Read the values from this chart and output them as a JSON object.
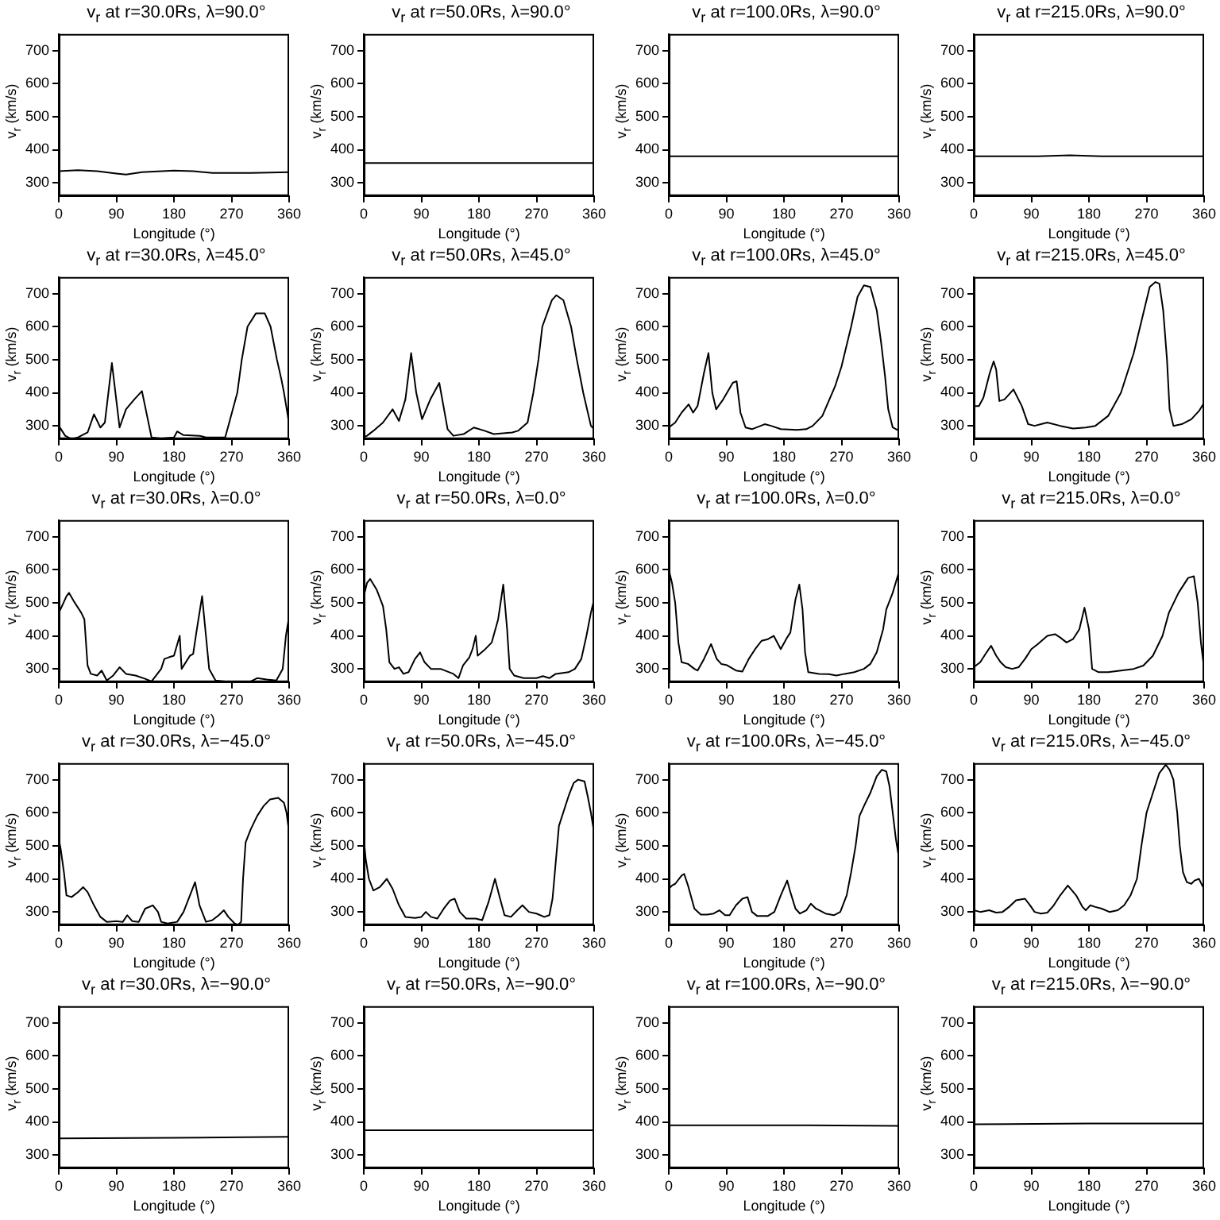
{
  "chart_data": [
    {
      "type": "line",
      "title": "v$_{r}$ at r=30.0Rs, λ=90.0°",
      "xlabel": "Longitude (°)",
      "ylabel": "v$_{r}$ (km/s)",
      "color": "#000000",
      "xlim": [
        0,
        360
      ],
      "xticks": [
        0,
        90,
        180,
        270,
        360
      ],
      "ylim": [
        260,
        750
      ],
      "yticks": [
        300,
        400,
        500,
        600,
        700
      ],
      "grid": false,
      "x": [
        0,
        30,
        60,
        90,
        105,
        130,
        180,
        210,
        240,
        300,
        360
      ],
      "values": [
        335,
        338,
        335,
        328,
        325,
        332,
        337,
        335,
        330,
        330,
        332
      ]
    },
    {
      "type": "line",
      "title": "v$_{r}$ at r=50.0Rs, λ=90.0°",
      "xlabel": "Longitude (°)",
      "ylabel": "v$_{r}$ (km/s)",
      "color": "#000000",
      "xlim": [
        0,
        360
      ],
      "xticks": [
        0,
        90,
        180,
        270,
        360
      ],
      "ylim": [
        260,
        750
      ],
      "yticks": [
        300,
        400,
        500,
        600,
        700
      ],
      "grid": false,
      "x": [
        0,
        180,
        360
      ],
      "values": [
        360,
        360,
        360
      ]
    },
    {
      "type": "line",
      "title": "v$_{r}$ at r=100.0Rs, λ=90.0°",
      "xlabel": "Longitude (°)",
      "ylabel": "v$_{r}$ (km/s)",
      "color": "#000000",
      "xlim": [
        0,
        360
      ],
      "xticks": [
        0,
        90,
        180,
        270,
        360
      ],
      "ylim": [
        260,
        750
      ],
      "yticks": [
        300,
        400,
        500,
        600,
        700
      ],
      "grid": false,
      "x": [
        0,
        180,
        360
      ],
      "values": [
        380,
        380,
        380
      ]
    },
    {
      "type": "line",
      "title": "v$_{r}$ at r=215.0Rs, λ=90.0°",
      "xlabel": "Longitude (°)",
      "ylabel": "v$_{r}$ (km/s)",
      "color": "#000000",
      "xlim": [
        0,
        360
      ],
      "xticks": [
        0,
        90,
        180,
        270,
        360
      ],
      "ylim": [
        260,
        750
      ],
      "yticks": [
        300,
        400,
        500,
        600,
        700
      ],
      "grid": false,
      "x": [
        0,
        100,
        150,
        200,
        360
      ],
      "values": [
        380,
        380,
        383,
        380,
        380
      ]
    },
    {
      "type": "line",
      "title": "v$_{r}$ at r=30.0Rs, λ=45.0°",
      "xlabel": "Longitude (°)",
      "ylabel": "v$_{r}$ (km/s)",
      "color": "#000000",
      "xlim": [
        0,
        360
      ],
      "xticks": [
        0,
        90,
        180,
        270,
        360
      ],
      "ylim": [
        260,
        750
      ],
      "yticks": [
        300,
        400,
        500,
        600,
        700
      ],
      "grid": false,
      "x": [
        0,
        10,
        20,
        30,
        45,
        55,
        65,
        72,
        83,
        95,
        105,
        118,
        130,
        138,
        145,
        160,
        180,
        185,
        195,
        220,
        230,
        260,
        265,
        279,
        286,
        295,
        308,
        322,
        331,
        341,
        348,
        352,
        358,
        360
      ],
      "values": [
        300,
        270,
        260,
        265,
        280,
        335,
        295,
        310,
        490,
        295,
        350,
        380,
        405,
        330,
        265,
        262,
        265,
        283,
        272,
        270,
        265,
        265,
        300,
        400,
        500,
        600,
        640,
        640,
        600,
        500,
        440,
        400,
        330,
        300
      ]
    },
    {
      "type": "line",
      "title": "v$_{r}$ at r=50.0Rs, λ=45.0°",
      "xlabel": "Longitude (°)",
      "ylabel": "v$_{r}$ (km/s)",
      "color": "#000000",
      "xlim": [
        0,
        360
      ],
      "xticks": [
        0,
        90,
        180,
        270,
        360
      ],
      "ylim": [
        260,
        750
      ],
      "yticks": [
        300,
        400,
        500,
        600,
        700
      ],
      "grid": false,
      "x": [
        0,
        5,
        15,
        30,
        45,
        55,
        65,
        74,
        82,
        91,
        104,
        118,
        131,
        140,
        156,
        172,
        189,
        203,
        232,
        241,
        256,
        265,
        273,
        279,
        294,
        301,
        312,
        324,
        333,
        343,
        355,
        360
      ],
      "values": [
        265,
        270,
        285,
        310,
        350,
        315,
        380,
        520,
        400,
        320,
        380,
        430,
        290,
        270,
        275,
        295,
        285,
        275,
        280,
        285,
        310,
        400,
        500,
        600,
        680,
        695,
        680,
        600,
        500,
        400,
        300,
        290
      ]
    },
    {
      "type": "line",
      "title": "v$_{r}$ at r=100.0Rs, λ=45.0°",
      "xlabel": "Longitude (°)",
      "ylabel": "v$_{r}$ (km/s)",
      "color": "#000000",
      "xlim": [
        0,
        360
      ],
      "xticks": [
        0,
        90,
        180,
        270,
        360
      ],
      "ylim": [
        260,
        750
      ],
      "yticks": [
        300,
        400,
        500,
        600,
        700
      ],
      "grid": false,
      "x": [
        0,
        10,
        20,
        31,
        38,
        45,
        55,
        62,
        68,
        74,
        85,
        100,
        106,
        112,
        120,
        130,
        150,
        160,
        175,
        200,
        215,
        225,
        240,
        260,
        270,
        285,
        295,
        305,
        315,
        325,
        332,
        338,
        343,
        350,
        360
      ],
      "values": [
        295,
        310,
        340,
        365,
        340,
        360,
        460,
        520,
        400,
        350,
        380,
        430,
        435,
        340,
        295,
        290,
        305,
        300,
        290,
        288,
        290,
        300,
        330,
        420,
        480,
        600,
        690,
        725,
        720,
        650,
        550,
        450,
        350,
        295,
        285
      ]
    },
    {
      "type": "line",
      "title": "v$_{r}$ at r=215.0Rs, λ=45.0°",
      "xlabel": "Longitude (°)",
      "ylabel": "v$_{r}$ (km/s)",
      "color": "#000000",
      "xlim": [
        0,
        360
      ],
      "xticks": [
        0,
        90,
        180,
        270,
        360
      ],
      "ylim": [
        260,
        750
      ],
      "yticks": [
        300,
        400,
        500,
        600,
        700
      ],
      "grid": false,
      "x": [
        0,
        8,
        15,
        25,
        31,
        35,
        40,
        48,
        55,
        62,
        75,
        85,
        95,
        105,
        115,
        135,
        155,
        175,
        190,
        210,
        230,
        250,
        265,
        275,
        284,
        290,
        296,
        302,
        306,
        312,
        325,
        340,
        352,
        360
      ],
      "values": [
        360,
        360,
        385,
        460,
        495,
        470,
        375,
        380,
        395,
        410,
        360,
        305,
        300,
        305,
        310,
        300,
        292,
        295,
        300,
        330,
        400,
        520,
        640,
        720,
        735,
        730,
        650,
        500,
        350,
        300,
        305,
        320,
        345,
        370
      ]
    },
    {
      "type": "line",
      "title": "v$_{r}$ at r=30.0Rs, λ=0.0°",
      "xlabel": "Longitude (°)",
      "ylabel": "v$_{r}$ (km/s)",
      "color": "#000000",
      "xlim": [
        0,
        360
      ],
      "xticks": [
        0,
        90,
        180,
        270,
        360
      ],
      "ylim": [
        260,
        750
      ],
      "yticks": [
        300,
        400,
        500,
        600,
        700
      ],
      "grid": false,
      "x": [
        0,
        5,
        12,
        16,
        25,
        35,
        40,
        45,
        50,
        60,
        67,
        75,
        85,
        95,
        105,
        120,
        135,
        145,
        150,
        160,
        165,
        172,
        180,
        189,
        192,
        205,
        210,
        215,
        224,
        230,
        235,
        245,
        260,
        280,
        300,
        310,
        325,
        340,
        350,
        355,
        360
      ],
      "values": [
        470,
        490,
        520,
        530,
        500,
        470,
        450,
        310,
        285,
        280,
        295,
        265,
        280,
        305,
        285,
        280,
        270,
        262,
        275,
        300,
        330,
        335,
        340,
        400,
        300,
        340,
        345,
        410,
        520,
        400,
        300,
        265,
        262,
        260,
        262,
        272,
        268,
        265,
        300,
        400,
        460
      ]
    },
    {
      "type": "line",
      "title": "v$_{r}$ at r=50.0Rs, λ=0.0°",
      "xlabel": "Longitude (°)",
      "ylabel": "v$_{r}$ (km/s)",
      "color": "#000000",
      "xlim": [
        0,
        360
      ],
      "xticks": [
        0,
        90,
        180,
        270,
        360
      ],
      "ylim": [
        260,
        750
      ],
      "yticks": [
        300,
        400,
        500,
        600,
        700
      ],
      "grid": false,
      "x": [
        0,
        5,
        10,
        20,
        30,
        35,
        40,
        48,
        55,
        62,
        70,
        80,
        88,
        95,
        105,
        120,
        140,
        148,
        155,
        165,
        170,
        175,
        178,
        190,
        200,
        210,
        218,
        224,
        228,
        235,
        250,
        270,
        280,
        290,
        300,
        320,
        330,
        340,
        348,
        355,
        360
      ],
      "values": [
        520,
        560,
        572,
        540,
        490,
        420,
        320,
        300,
        305,
        285,
        290,
        330,
        350,
        320,
        300,
        300,
        285,
        272,
        310,
        335,
        360,
        400,
        340,
        360,
        380,
        450,
        555,
        420,
        300,
        280,
        272,
        272,
        278,
        272,
        285,
        290,
        300,
        330,
        400,
        470,
        510
      ]
    },
    {
      "type": "line",
      "title": "v$_{r}$ at r=100.0Rs, λ=0.0°",
      "xlabel": "Longitude (°)",
      "ylabel": "v$_{r}$ (km/s)",
      "color": "#000000",
      "xlim": [
        0,
        360
      ],
      "xticks": [
        0,
        90,
        180,
        270,
        360
      ],
      "ylim": [
        260,
        750
      ],
      "yticks": [
        300,
        400,
        500,
        600,
        700
      ],
      "grid": false,
      "x": [
        0,
        5,
        10,
        15,
        20,
        30,
        40,
        45,
        55,
        66,
        75,
        82,
        90,
        105,
        115,
        125,
        135,
        145,
        155,
        164,
        175,
        185,
        190,
        198,
        204,
        209,
        213,
        218,
        235,
        250,
        262,
        275,
        290,
        305,
        315,
        325,
        335,
        340,
        350,
        360
      ],
      "values": [
        600,
        560,
        500,
        380,
        320,
        315,
        300,
        295,
        330,
        375,
        330,
        315,
        312,
        295,
        292,
        330,
        360,
        385,
        390,
        400,
        360,
        395,
        410,
        510,
        555,
        480,
        350,
        290,
        285,
        284,
        280,
        285,
        290,
        300,
        315,
        350,
        420,
        480,
        530,
        595
      ]
    },
    {
      "type": "line",
      "title": "v$_{r}$ at r=215.0Rs, λ=0.0°",
      "xlabel": "Longitude (°)",
      "ylabel": "v$_{r}$ (km/s)",
      "color": "#000000",
      "xlim": [
        0,
        360
      ],
      "xticks": [
        0,
        90,
        180,
        270,
        360
      ],
      "ylim": [
        260,
        750
      ],
      "yticks": [
        300,
        400,
        500,
        600,
        700
      ],
      "grid": false,
      "x": [
        0,
        10,
        20,
        27,
        35,
        42,
        50,
        60,
        70,
        80,
        90,
        100,
        115,
        127,
        135,
        145,
        155,
        165,
        173,
        180,
        185,
        195,
        210,
        230,
        250,
        265,
        280,
        295,
        305,
        320,
        335,
        344,
        350,
        355,
        360
      ],
      "values": [
        305,
        320,
        350,
        370,
        340,
        320,
        305,
        300,
        305,
        330,
        360,
        375,
        400,
        405,
        395,
        380,
        390,
        420,
        485,
        420,
        300,
        290,
        290,
        295,
        300,
        310,
        340,
        400,
        470,
        530,
        575,
        580,
        500,
        380,
        300
      ]
    },
    {
      "type": "line",
      "title": "v$_{r}$ at r=30.0Rs, λ=−45.0°",
      "xlabel": "Longitude (°)",
      "ylabel": "v$_{r}$ (km/s)",
      "color": "#000000",
      "xlim": [
        0,
        360
      ],
      "xticks": [
        0,
        90,
        180,
        270,
        360
      ],
      "ylim": [
        260,
        750
      ],
      "yticks": [
        300,
        400,
        500,
        600,
        700
      ],
      "grid": false,
      "x": [
        0,
        3,
        8,
        12,
        20,
        30,
        38,
        45,
        55,
        65,
        75,
        90,
        100,
        107,
        115,
        125,
        135,
        147,
        155,
        160,
        170,
        185,
        195,
        205,
        213,
        220,
        230,
        240,
        250,
        258,
        265,
        275,
        280,
        285,
        288,
        292,
        300,
        310,
        320,
        330,
        343,
        352,
        356,
        360
      ],
      "values": [
        520,
        490,
        420,
        350,
        345,
        360,
        375,
        360,
        320,
        285,
        270,
        272,
        270,
        290,
        272,
        270,
        310,
        320,
        300,
        270,
        265,
        270,
        300,
        350,
        390,
        320,
        270,
        275,
        290,
        305,
        285,
        265,
        260,
        270,
        400,
        510,
        550,
        590,
        620,
        640,
        645,
        630,
        600,
        540
      ]
    },
    {
      "type": "line",
      "title": "v$_{r}$ at r=50.0Rs, λ=−45.0°",
      "xlabel": "Longitude (°)",
      "ylabel": "v$_{r}$ (km/s)",
      "color": "#000000",
      "xlim": [
        0,
        360
      ],
      "xticks": [
        0,
        90,
        180,
        270,
        360
      ],
      "ylim": [
        260,
        750
      ],
      "yticks": [
        300,
        400,
        500,
        600,
        700
      ],
      "grid": false,
      "x": [
        0,
        3,
        8,
        15,
        25,
        36,
        45,
        55,
        65,
        80,
        90,
        97,
        105,
        115,
        125,
        135,
        142,
        150,
        160,
        175,
        185,
        195,
        205,
        213,
        220,
        230,
        240,
        248,
        258,
        270,
        282,
        290,
        295,
        300,
        305,
        320,
        328,
        335,
        345,
        350,
        355,
        360
      ],
      "values": [
        520,
        460,
        400,
        365,
        375,
        400,
        370,
        320,
        285,
        282,
        285,
        300,
        285,
        280,
        310,
        335,
        340,
        300,
        280,
        280,
        275,
        330,
        400,
        340,
        290,
        285,
        305,
        320,
        300,
        295,
        285,
        290,
        340,
        450,
        560,
        650,
        690,
        700,
        695,
        650,
        600,
        540
      ]
    },
    {
      "type": "line",
      "title": "v$_{r}$ at r=100.0Rs, λ=−45.0°",
      "xlabel": "Longitude (°)",
      "ylabel": "v$_{r}$ (km/s)",
      "color": "#000000",
      "xlim": [
        0,
        360
      ],
      "xticks": [
        0,
        90,
        180,
        270,
        360
      ],
      "ylim": [
        260,
        750
      ],
      "yticks": [
        300,
        400,
        500,
        600,
        700
      ],
      "grid": false,
      "x": [
        0,
        5,
        10,
        20,
        24,
        30,
        40,
        50,
        60,
        70,
        79,
        88,
        95,
        105,
        115,
        123,
        130,
        138,
        155,
        165,
        175,
        185,
        190,
        198,
        205,
        215,
        222,
        230,
        245,
        258,
        268,
        278,
        285,
        292,
        298,
        305,
        315,
        325,
        333,
        340,
        345,
        350,
        355,
        360
      ],
      "values": [
        370,
        380,
        385,
        410,
        415,
        380,
        310,
        292,
        292,
        295,
        305,
        290,
        290,
        320,
        340,
        345,
        300,
        288,
        288,
        300,
        350,
        395,
        360,
        310,
        295,
        305,
        325,
        310,
        295,
        290,
        300,
        350,
        420,
        500,
        590,
        620,
        660,
        710,
        730,
        725,
        680,
        600,
        520,
        460
      ]
    },
    {
      "type": "line",
      "title": "v$_{r}$ at r=215.0Rs, λ=−45.0°",
      "xlabel": "Longitude (°)",
      "ylabel": "v$_{r}$ (km/s)",
      "color": "#000000",
      "xlim": [
        0,
        360
      ],
      "xticks": [
        0,
        90,
        180,
        270,
        360
      ],
      "ylim": [
        260,
        750
      ],
      "yticks": [
        300,
        400,
        500,
        600,
        700
      ],
      "grid": false,
      "x": [
        0,
        10,
        24,
        35,
        45,
        55,
        66,
        80,
        88,
        95,
        105,
        115,
        125,
        135,
        147,
        160,
        170,
        175,
        182,
        190,
        200,
        212,
        225,
        235,
        245,
        255,
        262,
        270,
        280,
        290,
        300,
        306,
        312,
        318,
        322,
        327,
        333,
        340,
        345,
        352,
        357,
        360
      ],
      "values": [
        305,
        300,
        305,
        298,
        300,
        315,
        335,
        340,
        320,
        300,
        295,
        298,
        320,
        350,
        380,
        350,
        315,
        305,
        320,
        315,
        310,
        300,
        305,
        320,
        350,
        400,
        500,
        600,
        660,
        720,
        745,
        730,
        700,
        600,
        500,
        420,
        390,
        385,
        395,
        400,
        380,
        370
      ]
    },
    {
      "type": "line",
      "title": "v$_{r}$ at r=30.0Rs, λ=−90.0°",
      "xlabel": "Longitude (°)",
      "ylabel": "v$_{r}$ (km/s)",
      "color": "#000000",
      "xlim": [
        0,
        360
      ],
      "xticks": [
        0,
        90,
        180,
        270,
        360
      ],
      "ylim": [
        260,
        750
      ],
      "yticks": [
        300,
        400,
        500,
        600,
        700
      ],
      "grid": false,
      "x": [
        0,
        180,
        360
      ],
      "values": [
        350,
        352,
        355
      ]
    },
    {
      "type": "line",
      "title": "v$_{r}$ at r=50.0Rs, λ=−90.0°",
      "xlabel": "Longitude (°)",
      "ylabel": "v$_{r}$ (km/s)",
      "color": "#000000",
      "xlim": [
        0,
        360
      ],
      "xticks": [
        0,
        90,
        180,
        270,
        360
      ],
      "ylim": [
        260,
        750
      ],
      "yticks": [
        300,
        400,
        500,
        600,
        700
      ],
      "grid": false,
      "x": [
        0,
        180,
        360
      ],
      "values": [
        375,
        375,
        375
      ]
    },
    {
      "type": "line",
      "title": "v$_{r}$ at r=100.0Rs, λ=−90.0°",
      "xlabel": "Longitude (°)",
      "ylabel": "v$_{r}$ (km/s)",
      "color": "#000000",
      "xlim": [
        0,
        360
      ],
      "xticks": [
        0,
        90,
        180,
        270,
        360
      ],
      "ylim": [
        260,
        750
      ],
      "yticks": [
        300,
        400,
        500,
        600,
        700
      ],
      "grid": false,
      "x": [
        0,
        180,
        360
      ],
      "values": [
        390,
        390,
        388
      ]
    },
    {
      "type": "line",
      "title": "v$_{r}$ at r=215.0Rs, λ=−90.0°",
      "xlabel": "Longitude (°)",
      "ylabel": "v$_{r}$ (km/s)",
      "color": "#000000",
      "xlim": [
        0,
        360
      ],
      "xticks": [
        0,
        90,
        180,
        270,
        360
      ],
      "ylim": [
        260,
        750
      ],
      "yticks": [
        300,
        400,
        500,
        600,
        700
      ],
      "grid": false,
      "x": [
        0,
        180,
        360
      ],
      "values": [
        393,
        395,
        395
      ]
    }
  ]
}
